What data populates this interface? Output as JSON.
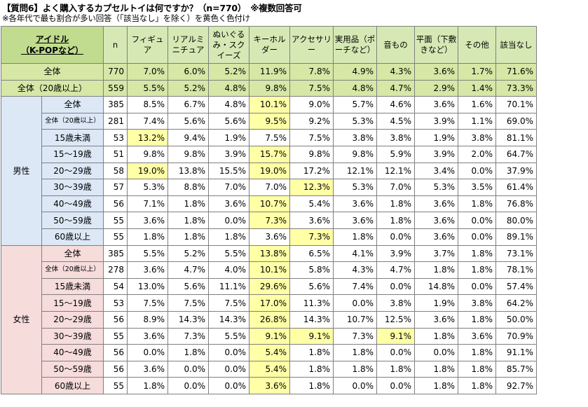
{
  "title": "【質問6】よく購入するカプセルトイは何ですか？（n=770）　※複数回答可",
  "note": "※各年代で最も割合が多い回答（「該当なし」を除く）を黄色く色付け",
  "header": {
    "idol_line1": "アイドル",
    "idol_line2": "（K-POPなど）",
    "n": "n",
    "columns": [
      "フィギュア",
      "リアルミニチュア",
      "ぬいぐるみ・スクイーズ",
      "キーホルダー",
      "アクセサリー",
      "実用品（ポーチなど）",
      "音もの",
      "平面（下敷きなど）",
      "その他",
      "該当なし"
    ]
  },
  "totals": [
    {
      "label": "全体",
      "n": "770",
      "values": [
        "7.0%",
        "6.0%",
        "5.2%",
        "11.9%",
        "7.8%",
        "4.9%",
        "4.3%",
        "3.6%",
        "1.7%",
        "71.6%"
      ]
    },
    {
      "label": "全体（20歳以上）",
      "n": "559",
      "values": [
        "5.5%",
        "5.2%",
        "4.8%",
        "9.8%",
        "7.5%",
        "4.8%",
        "4.7%",
        "2.9%",
        "1.4%",
        "73.3%"
      ]
    }
  ],
  "groups": [
    {
      "gender": "男性",
      "rows": [
        {
          "label": "全体",
          "n": "385",
          "values": [
            "8.5%",
            "6.7%",
            "4.8%",
            "10.1%",
            "9.0%",
            "5.7%",
            "4.6%",
            "3.6%",
            "1.6%",
            "70.1%"
          ],
          "hl": [
            3
          ]
        },
        {
          "label": "全体（20歳以上）",
          "small": true,
          "n": "281",
          "values": [
            "7.4%",
            "5.6%",
            "5.6%",
            "9.5%",
            "9.2%",
            "5.3%",
            "4.5%",
            "3.9%",
            "1.1%",
            "69.0%"
          ],
          "hl": [
            3
          ]
        },
        {
          "label": "15歳未満",
          "n": "53",
          "values": [
            "13.2%",
            "9.4%",
            "1.9%",
            "7.5%",
            "7.5%",
            "3.8%",
            "3.8%",
            "1.9%",
            "3.8%",
            "81.1%"
          ],
          "hl": [
            0
          ]
        },
        {
          "label": "15～19歳",
          "n": "51",
          "values": [
            "9.8%",
            "9.8%",
            "3.9%",
            "15.7%",
            "9.8%",
            "9.8%",
            "5.9%",
            "3.9%",
            "2.0%",
            "64.7%"
          ],
          "hl": [
            3
          ]
        },
        {
          "label": "20～29歳",
          "n": "58",
          "values": [
            "19.0%",
            "13.8%",
            "15.5%",
            "19.0%",
            "17.2%",
            "12.1%",
            "12.1%",
            "3.4%",
            "0.0%",
            "37.9%"
          ],
          "hl": [
            0,
            3
          ]
        },
        {
          "label": "30～39歳",
          "n": "57",
          "values": [
            "5.3%",
            "8.8%",
            "7.0%",
            "7.0%",
            "12.3%",
            "5.3%",
            "7.0%",
            "5.3%",
            "3.5%",
            "61.4%"
          ],
          "hl": [
            4
          ]
        },
        {
          "label": "40～49歳",
          "n": "56",
          "values": [
            "7.1%",
            "1.8%",
            "3.6%",
            "10.7%",
            "5.4%",
            "3.6%",
            "1.8%",
            "3.6%",
            "1.8%",
            "76.8%"
          ],
          "hl": [
            3
          ]
        },
        {
          "label": "50～59歳",
          "n": "55",
          "values": [
            "3.6%",
            "1.8%",
            "0.0%",
            "7.3%",
            "3.6%",
            "3.6%",
            "1.8%",
            "3.6%",
            "0.0%",
            "80.0%"
          ],
          "hl": [
            3
          ]
        },
        {
          "label": "60歳以上",
          "n": "55",
          "values": [
            "1.8%",
            "1.8%",
            "1.8%",
            "3.6%",
            "7.3%",
            "1.8%",
            "0.0%",
            "3.6%",
            "0.0%",
            "89.1%"
          ],
          "hl": [
            4
          ]
        }
      ]
    },
    {
      "gender": "女性",
      "rows": [
        {
          "label": "全体",
          "n": "385",
          "values": [
            "5.5%",
            "5.2%",
            "5.5%",
            "13.8%",
            "6.5%",
            "4.1%",
            "3.9%",
            "3.7%",
            "1.8%",
            "73.1%"
          ],
          "hl": [
            3
          ]
        },
        {
          "label": "全体（20歳以上）",
          "small": true,
          "n": "278",
          "values": [
            "3.6%",
            "4.7%",
            "4.0%",
            "10.1%",
            "5.8%",
            "4.3%",
            "4.7%",
            "1.8%",
            "1.8%",
            "78.1%"
          ],
          "hl": [
            3
          ]
        },
        {
          "label": "15歳未満",
          "n": "54",
          "values": [
            "13.0%",
            "5.6%",
            "11.1%",
            "29.6%",
            "5.6%",
            "7.4%",
            "0.0%",
            "14.8%",
            "0.0%",
            "57.4%"
          ],
          "hl": [
            3
          ]
        },
        {
          "label": "15～19歳",
          "n": "53",
          "values": [
            "7.5%",
            "7.5%",
            "7.5%",
            "17.0%",
            "11.3%",
            "0.0%",
            "3.8%",
            "1.9%",
            "3.8%",
            "64.2%"
          ],
          "hl": [
            3
          ]
        },
        {
          "label": "20～29歳",
          "n": "56",
          "values": [
            "8.9%",
            "14.3%",
            "14.3%",
            "26.8%",
            "14.3%",
            "10.7%",
            "12.5%",
            "3.6%",
            "1.8%",
            "50.0%"
          ],
          "hl": [
            3
          ]
        },
        {
          "label": "30～39歳",
          "n": "55",
          "values": [
            "3.6%",
            "7.3%",
            "5.5%",
            "9.1%",
            "9.1%",
            "7.3%",
            "9.1%",
            "1.8%",
            "3.6%",
            "70.9%"
          ],
          "hl": [
            3,
            4,
            6
          ]
        },
        {
          "label": "40～49歳",
          "n": "56",
          "values": [
            "0.0%",
            "1.8%",
            "0.0%",
            "5.4%",
            "1.8%",
            "1.8%",
            "0.0%",
            "0.0%",
            "1.8%",
            "91.1%"
          ],
          "hl": [
            3
          ]
        },
        {
          "label": "50～59歳",
          "n": "56",
          "values": [
            "3.6%",
            "0.0%",
            "0.0%",
            "5.4%",
            "1.8%",
            "1.8%",
            "1.8%",
            "1.8%",
            "1.8%",
            "85.7%"
          ],
          "hl": [
            3
          ]
        },
        {
          "label": "60歳以上",
          "n": "55",
          "values": [
            "1.8%",
            "0.0%",
            "0.0%",
            "3.6%",
            "1.8%",
            "0.0%",
            "0.0%",
            "1.8%",
            "1.8%",
            "92.7%"
          ],
          "hl": [
            3
          ]
        }
      ]
    }
  ],
  "colors": {
    "header_bg": "#d6e9b4",
    "total_bg": "#d6e7a6",
    "male_bg": "#dce8f6",
    "female_bg": "#f7dcdc",
    "highlight": "#ffffa6"
  }
}
